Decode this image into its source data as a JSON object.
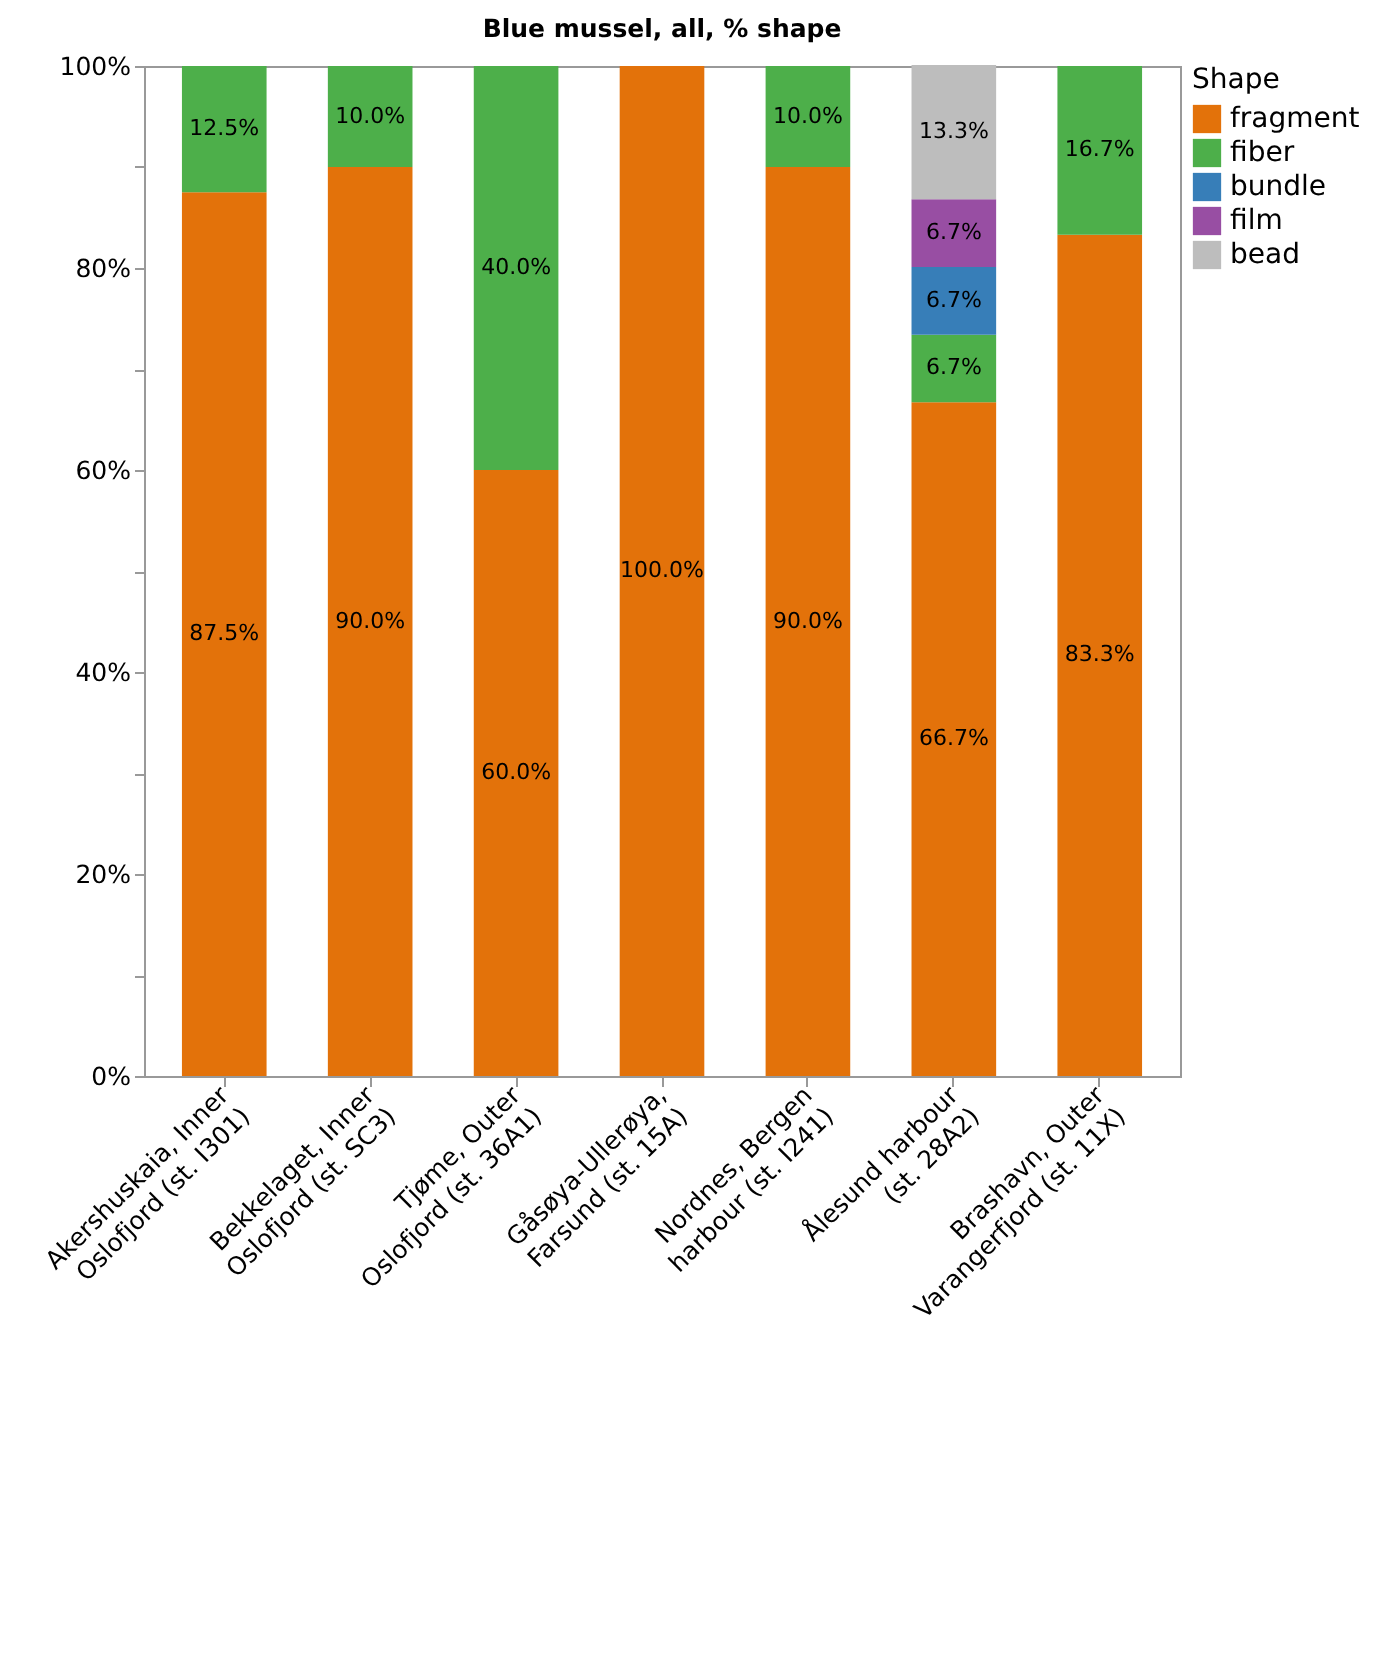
{
  "chart_data": {
    "type": "bar",
    "title": "Blue mussel, all, % shape",
    "stacked": true,
    "categories": [
      "Akershuskaia, Inner Oslofjord (st. I301)",
      "Bekkelaget, Inner Oslofjord (st. SC3)",
      "Tjøme, Outer Oslofjord (st. 36A1)",
      "Gåsøya-Ullerøya, Farsund (st. 15A)",
      "Nordnes, Bergen harbour  (st. I241)",
      "Ålesund harbour (st. 28A2)",
      "Brashavn, Outer Varangerfjord (st. 11X)"
    ],
    "series": [
      {
        "name": "fragment",
        "color": "#e3720a",
        "values": [
          87.5,
          90.0,
          60.0,
          100.0,
          90.0,
          66.7,
          83.3
        ],
        "value_labels": [
          "87.5%",
          "90.0%",
          "60.0%",
          "100.0%",
          "90.0%",
          "66.7%",
          "83.3%"
        ]
      },
      {
        "name": "fiber",
        "color": "#4daf4a",
        "values": [
          12.5,
          10.0,
          40.0,
          null,
          10.0,
          6.7,
          16.7
        ],
        "value_labels": [
          "12.5%",
          "10.0%",
          "40.0%",
          null,
          "10.0%",
          "6.7%",
          "16.7%"
        ]
      },
      {
        "name": "bundle",
        "color": "#377eb8",
        "values": [
          null,
          null,
          null,
          null,
          null,
          6.7,
          null
        ],
        "value_labels": [
          null,
          null,
          null,
          null,
          null,
          "6.7%",
          null
        ]
      },
      {
        "name": "film",
        "color": "#984ea3",
        "values": [
          null,
          null,
          null,
          null,
          null,
          6.7,
          null
        ],
        "value_labels": [
          null,
          null,
          null,
          null,
          null,
          "6.7%",
          null
        ]
      },
      {
        "name": "bead",
        "color": "#bdbdbd",
        "values": [
          null,
          null,
          null,
          null,
          null,
          13.3,
          null
        ],
        "value_labels": [
          null,
          null,
          null,
          null,
          null,
          "13.3%",
          null
        ]
      }
    ],
    "legend_title": "Shape",
    "legend": "top right",
    "ylim": [
      0,
      100
    ],
    "yticks": [
      {
        "value": 0,
        "label": "0%"
      },
      {
        "value": 10,
        "label": null
      },
      {
        "value": 20,
        "label": "20%"
      },
      {
        "value": 30,
        "label": null
      },
      {
        "value": 40,
        "label": "40%"
      },
      {
        "value": 50,
        "label": null
      },
      {
        "value": 60,
        "label": "60%"
      },
      {
        "value": 70,
        "label": null
      },
      {
        "value": 80,
        "label": "80%"
      },
      {
        "value": 90,
        "label": null
      },
      {
        "value": 100,
        "label": "100%"
      }
    ]
  }
}
